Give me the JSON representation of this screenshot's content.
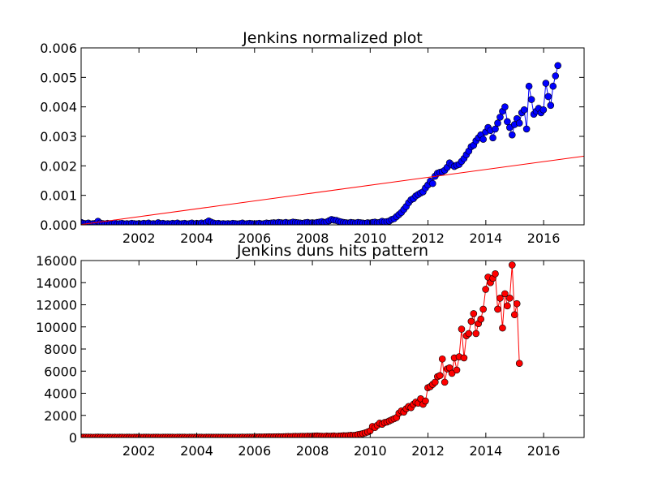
{
  "chart_data": [
    {
      "type": "line",
      "title": "Jenkins normalized plot",
      "xlabel": "",
      "ylabel": "",
      "xlim": [
        2000.0,
        2017.4
      ],
      "ylim": [
        0,
        0.006
      ],
      "x_ticks": [
        "2002",
        "2004",
        "2006",
        "2008",
        "2010",
        "2012",
        "2014",
        "2016"
      ],
      "y_ticks": [
        "0.000",
        "0.001",
        "0.002",
        "0.003",
        "0.004",
        "0.005",
        "0.006"
      ],
      "grid": false,
      "legend": "none",
      "series": [
        {
          "style": "line-with-markers",
          "color": "#0000ff",
          "x_start": 2000.0,
          "x_step_years": 0.0833,
          "values": [
            8e-05,
            5e-05,
            4e-05,
            6e-05,
            3e-05,
            4e-05,
            5e-05,
            0.00012,
            6e-05,
            4e-05,
            3e-05,
            5e-05,
            4e-05,
            3e-05,
            6e-05,
            3e-05,
            4e-05,
            5e-05,
            3e-05,
            4e-05,
            3e-05,
            5e-05,
            4e-05,
            3e-05,
            4e-05,
            3e-05,
            5e-05,
            4e-05,
            6e-05,
            3e-05,
            4e-05,
            3e-05,
            7e-05,
            4e-05,
            5e-05,
            3e-05,
            4e-05,
            3e-05,
            5e-05,
            4e-05,
            6e-05,
            3e-05,
            4e-05,
            5e-05,
            3e-05,
            4e-05,
            6e-05,
            3e-05,
            5e-05,
            4e-05,
            6e-05,
            3e-05,
            8e-05,
            0.00013,
            9e-05,
            6e-05,
            4e-05,
            5e-05,
            3e-05,
            4e-05,
            3e-05,
            4e-05,
            3e-05,
            5e-05,
            4e-05,
            3e-05,
            4e-05,
            6e-05,
            3e-05,
            4e-05,
            5e-05,
            4e-05,
            3e-05,
            4e-05,
            5e-05,
            3e-05,
            4e-05,
            6e-05,
            5e-05,
            6e-05,
            7e-05,
            6e-05,
            8e-05,
            7e-05,
            6e-05,
            8e-05,
            6e-05,
            7e-05,
            9e-05,
            8e-05,
            7e-05,
            6e-05,
            5e-05,
            7e-05,
            8e-05,
            6e-05,
            7e-05,
            6e-05,
            8e-05,
            9e-05,
            0.00011,
            8e-05,
            0.0001,
            0.00014,
            0.00018,
            0.00016,
            0.00015,
            0.00012,
            0.0001,
            8e-05,
            7e-05,
            6e-05,
            8e-05,
            7e-05,
            6e-05,
            8e-05,
            7e-05,
            6e-05,
            5e-05,
            7e-05,
            6e-05,
            8e-05,
            9e-05,
            7e-05,
            8e-05,
            0.00012,
            0.0001,
            0.00011,
            0.00013,
            0.00018,
            0.00021,
            0.00028,
            0.00035,
            0.00042,
            0.00052,
            0.00062,
            0.00075,
            0.00085,
            0.00089,
            0.00098,
            0.00103,
            0.00108,
            0.00112,
            0.00125,
            0.00135,
            0.00148,
            0.0014,
            0.00165,
            0.00175,
            0.00178,
            0.0018,
            0.00185,
            0.00195,
            0.0021,
            0.00203,
            0.00198,
            0.00202,
            0.00205,
            0.00215,
            0.00225,
            0.00238,
            0.0025,
            0.00265,
            0.0027,
            0.00285,
            0.00295,
            0.00305,
            0.0029,
            0.00315,
            0.0033,
            0.0032,
            0.00295,
            0.00325,
            0.00345,
            0.00365,
            0.00385,
            0.004,
            0.0035,
            0.0033,
            0.00305,
            0.0034,
            0.0036,
            0.00345,
            0.0038,
            0.0039,
            0.00325,
            0.0047,
            0.00425,
            0.00375,
            0.00385,
            0.00395,
            0.0038,
            0.0039,
            0.0048,
            0.00435,
            0.00405,
            0.0047,
            0.00505,
            0.0054
          ]
        },
        {
          "style": "line",
          "color": "#ff0000",
          "points": [
            [
              2000.0,
              1e-05
            ],
            [
              2017.4,
              0.00233
            ]
          ]
        }
      ]
    },
    {
      "type": "line",
      "title": "Jenkins duns hits pattern",
      "xlabel": "",
      "ylabel": "",
      "xlim": [
        2000.0,
        2017.4
      ],
      "ylim": [
        0,
        16000
      ],
      "x_ticks": [
        "2002",
        "2004",
        "2006",
        "2008",
        "2010",
        "2012",
        "2014",
        "2016"
      ],
      "y_ticks": [
        "0",
        "2000",
        "4000",
        "6000",
        "8000",
        "10000",
        "12000",
        "14000",
        "16000"
      ],
      "grid": false,
      "legend": "none",
      "series": [
        {
          "style": "line-with-markers",
          "color": "#ff0000",
          "x_start": 2000.0,
          "x_step_years": 0.0833,
          "values": [
            30,
            25,
            20,
            28,
            22,
            18,
            25,
            30,
            22,
            20,
            18,
            24,
            20,
            18,
            22,
            19,
            20,
            25,
            18,
            20,
            22,
            19,
            24,
            20,
            22,
            18,
            25,
            20,
            24,
            19,
            22,
            20,
            24,
            18,
            22,
            20,
            24,
            20,
            22,
            19,
            25,
            20,
            22,
            24,
            18,
            22,
            24,
            20,
            22,
            20,
            25,
            19,
            22,
            24,
            20,
            22,
            24,
            20,
            25,
            22,
            24,
            22,
            26,
            24,
            25,
            28,
            26,
            30,
            28,
            32,
            35,
            30,
            40,
            45,
            50,
            42,
            55,
            48,
            60,
            52,
            58,
            62,
            68,
            60,
            70,
            80,
            85,
            75,
            90,
            95,
            88,
            100,
            110,
            95,
            120,
            105,
            115,
            130,
            140,
            125,
            120,
            110,
            130,
            115,
            125,
            140,
            110,
            130,
            145,
            160,
            150,
            170,
            200,
            180,
            210,
            260,
            300,
            350,
            420,
            500,
            600,
            1000,
            900,
            1100,
            1300,
            1200,
            1350,
            1400,
            1500,
            1600,
            1700,
            1800,
            2200,
            2400,
            2300,
            2600,
            2800,
            2700,
            3000,
            3200,
            3100,
            3500,
            3000,
            3300,
            4500,
            4600,
            4800,
            5000,
            5500,
            5600,
            7100,
            5000,
            6200,
            6300,
            5800,
            7200,
            6100,
            7300,
            9800,
            7200,
            9200,
            9400,
            10500,
            11200,
            9400,
            10300,
            10700,
            11600,
            13400,
            14500,
            14000,
            14400,
            14800,
            11600,
            12600,
            9900,
            13000,
            11900,
            12600,
            15600,
            11100,
            12100,
            6700
          ]
        }
      ]
    }
  ]
}
